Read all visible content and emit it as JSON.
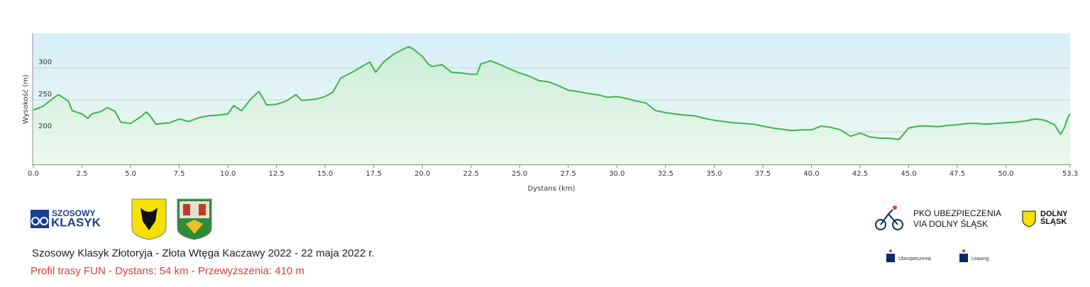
{
  "chart_data": {
    "type": "area",
    "x_label": "Dystans  (km)",
    "y_label": "Wysokość (m)",
    "x": [
      0,
      0.5,
      1.0,
      1.3,
      1.8,
      2.0,
      2.5,
      2.8,
      3.0,
      3.5,
      3.8,
      4.2,
      4.5,
      5.0,
      5.5,
      5.8,
      6.0,
      6.3,
      7.0,
      7.5,
      8.0,
      8.5,
      9.0,
      9.5,
      10.0,
      10.3,
      10.7,
      11.2,
      11.6,
      12.0,
      12.5,
      13.0,
      13.5,
      13.8,
      14.5,
      15.0,
      15.4,
      15.8,
      16.5,
      17.0,
      17.3,
      17.6,
      18.0,
      18.5,
      19.0,
      19.3,
      19.5,
      20.0,
      20.3,
      20.5,
      21.0,
      21.5,
      22.0,
      22.5,
      22.8,
      23.0,
      23.5,
      24.0,
      24.5,
      25.0,
      25.5,
      26.0,
      26.5,
      27.0,
      27.5,
      28.0,
      28.5,
      29.0,
      29.5,
      30.0,
      30.5,
      31.0,
      31.5,
      32.0,
      32.5,
      33.0,
      33.5,
      34.0,
      34.5,
      35.0,
      35.5,
      36.0,
      36.5,
      37.0,
      37.5,
      38.0,
      38.5,
      39.0,
      39.5,
      40.0,
      40.5,
      41.0,
      41.5,
      42.0,
      42.5,
      43.0,
      43.5,
      44.0,
      44.5,
      45.0,
      45.5,
      46.0,
      46.5,
      47.0,
      47.5,
      48.0,
      48.5,
      49.0,
      49.5,
      50.0,
      50.5,
      51.0,
      51.5,
      52.0,
      52.5,
      52.8,
      53.0,
      53.2,
      53.3
    ],
    "values": [
      234,
      240,
      252,
      258,
      248,
      233,
      228,
      221,
      228,
      232,
      238,
      232,
      215,
      213,
      223,
      231,
      225,
      212,
      214,
      220,
      216,
      222,
      225,
      226,
      228,
      241,
      233,
      252,
      263,
      242,
      243,
      248,
      258,
      249,
      251,
      255,
      262,
      284,
      295,
      304,
      309,
      293,
      309,
      321,
      329,
      333,
      330,
      318,
      306,
      302,
      305,
      293,
      292,
      290,
      290,
      306,
      311,
      305,
      298,
      292,
      287,
      280,
      278,
      272,
      265,
      263,
      260,
      258,
      254,
      255,
      252,
      248,
      245,
      233,
      230,
      228,
      226,
      225,
      221,
      218,
      216,
      214,
      213,
      212,
      209,
      206,
      204,
      202,
      203,
      203,
      209,
      207,
      203,
      193,
      198,
      192,
      190,
      190,
      188,
      206,
      209,
      209,
      208,
      210,
      211,
      213,
      213,
      212,
      213,
      214,
      215,
      217,
      220,
      218,
      211,
      196,
      206,
      224,
      228
    ],
    "color": "#3db54a",
    "xlim": [
      0,
      53.3
    ],
    "xticks": [
      {
        "value": 0,
        "label": "0.0"
      },
      2.5,
      {
        "value": 5,
        "label": "5.0"
      },
      7.5,
      {
        "value": 10,
        "label": "10.0"
      },
      12.5,
      {
        "value": 15,
        "label": "15.0"
      },
      17.5,
      {
        "value": 20,
        "label": "20.0"
      },
      22.5,
      {
        "value": 25,
        "label": "25.0"
      },
      27.5,
      {
        "value": 30,
        "label": "30.0"
      },
      32.5,
      {
        "value": 35,
        "label": "35.0"
      },
      37.5,
      {
        "value": 40,
        "label": "40.0"
      },
      42.5,
      {
        "value": 45,
        "label": "45.0"
      },
      47.5,
      {
        "value": 50,
        "label": "50.0"
      },
      53.3
    ],
    "ylim": [
      149,
      354
    ],
    "yticks": [
      200,
      250,
      300
    ],
    "grid": true
  },
  "footer": {
    "event": "Szosowy Klasyk Złotoryja - Złota Wtęga Kaczawy 2022 - 22 maja 2022 r.",
    "profile": "Profil trasy FUN - Dystans: 54 km - Przewyższenia: 410 m"
  },
  "logos": {
    "klasyk_1": "SZOSOWY",
    "klasyk_2": "KLASYK",
    "pko_1": "PKO UBEZPIECZENIA",
    "pko_2": "VIA DOLNY ŚLĄSK",
    "dolny_1": "DOLNY",
    "dolny_2": "ŚLĄSK",
    "ubezpieczenia": "Ubezpieczenia",
    "leasing": "Leasing"
  }
}
